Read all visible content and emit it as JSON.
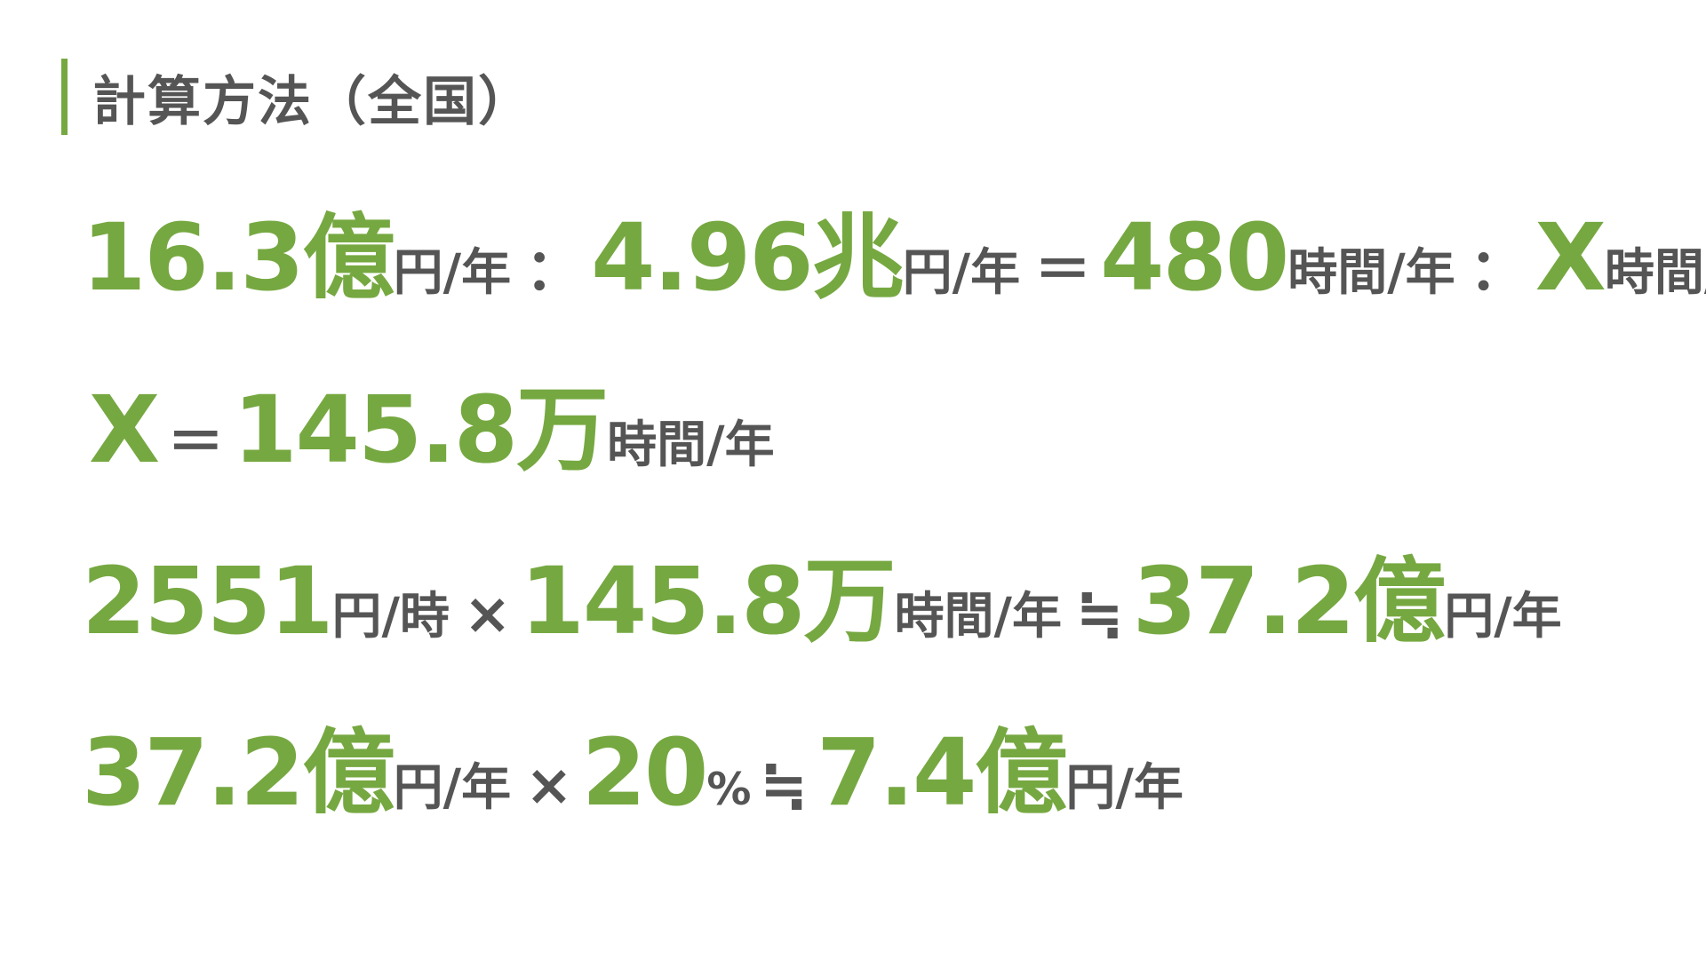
{
  "header": {
    "title": "計算方法（全国）",
    "accent_color": "#76a841",
    "text_color": "#555555"
  },
  "equations": [
    {
      "parts": [
        {
          "kind": "big",
          "text": "16.3億"
        },
        {
          "kind": "unit",
          "text": "円/年"
        },
        {
          "kind": "op",
          "text": "："
        },
        {
          "kind": "big",
          "text": "4.96兆"
        },
        {
          "kind": "unit",
          "text": "円/年"
        },
        {
          "kind": "op",
          "text": "＝"
        },
        {
          "kind": "big",
          "text": "480"
        },
        {
          "kind": "unit",
          "text": "時間/年"
        },
        {
          "kind": "op",
          "text": "："
        },
        {
          "kind": "big",
          "text": "X"
        },
        {
          "kind": "unit",
          "text": "時間/年"
        }
      ]
    },
    {
      "parts": [
        {
          "kind": "big",
          "text": "X"
        },
        {
          "kind": "op",
          "text": "＝"
        },
        {
          "kind": "big",
          "text": "145.8万"
        },
        {
          "kind": "unit",
          "text": "時間/年"
        }
      ]
    },
    {
      "parts": [
        {
          "kind": "big",
          "text": "2551"
        },
        {
          "kind": "unit",
          "text": "円/時"
        },
        {
          "kind": "op",
          "text": "×"
        },
        {
          "kind": "big",
          "text": "145.8万"
        },
        {
          "kind": "unit",
          "text": "時間/年"
        },
        {
          "kind": "op",
          "text": "≒"
        },
        {
          "kind": "big",
          "text": "37.2億"
        },
        {
          "kind": "unit",
          "text": "円/年"
        }
      ]
    },
    {
      "parts": [
        {
          "kind": "big",
          "text": "37.2億"
        },
        {
          "kind": "unit",
          "text": "円/年"
        },
        {
          "kind": "op",
          "text": "×"
        },
        {
          "kind": "big",
          "text": "20"
        },
        {
          "kind": "pct",
          "text": "%"
        },
        {
          "kind": "op",
          "text": "≒"
        },
        {
          "kind": "big",
          "text": "7.4億"
        },
        {
          "kind": "unit",
          "text": "円/年"
        }
      ]
    }
  ]
}
